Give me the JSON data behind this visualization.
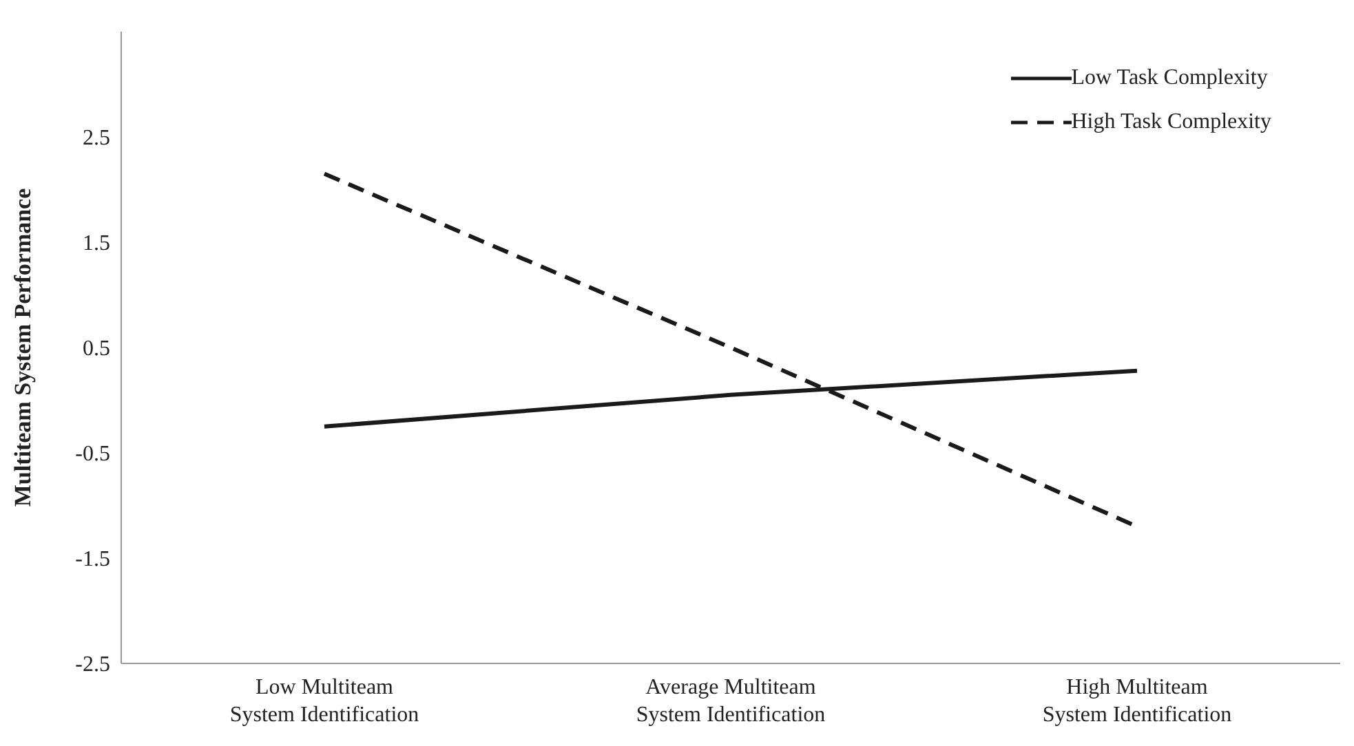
{
  "chart_data": {
    "type": "line",
    "ylabel": "Multiteam System Performance",
    "categories": [
      "Low Multiteam System Identification",
      "Average Multiteam System Identification",
      "High Multiteam System Identification"
    ],
    "series": [
      {
        "name": "Low Task Complexity",
        "color": "#1a1a1a",
        "line_style": "solid",
        "values": [
          -0.25,
          0.05,
          0.28
        ]
      },
      {
        "name": "High Task Complexity",
        "color": "#1a1a1a",
        "line_style": "dashed",
        "values": [
          2.15,
          0.5,
          -1.2
        ]
      }
    ],
    "ylim": [
      -2.5,
      3.5
    ],
    "yticks": [
      -2.5,
      -1.5,
      -0.5,
      0.5,
      1.5,
      2.5
    ],
    "grid": false,
    "legend": "top right",
    "marker": "none"
  }
}
